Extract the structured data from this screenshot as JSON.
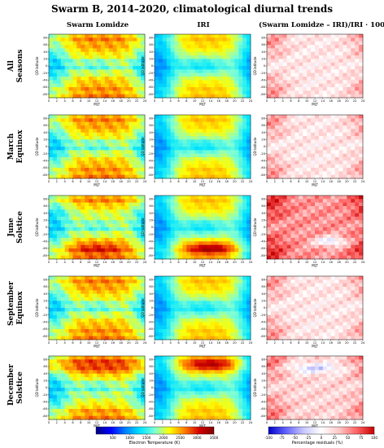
{
  "title": "Swarm B, 2014–2020, climatological diurnal trends",
  "colors": {
    "temp_scale": [
      "#00007f",
      "#0000ff",
      "#007fff",
      "#00e5ff",
      "#7fffd4",
      "#ffff00",
      "#ff7f00",
      "#d40000",
      "#7f0000"
    ],
    "resid_scale": [
      "#0000c8",
      "#6464ff",
      "#c8c8ff",
      "#ffffff",
      "#ffc8c8",
      "#ff6464",
      "#c80000"
    ]
  },
  "chart_data": [
    {
      "type": "heatmap",
      "panels_columns": [
        {
          "id": "lomidze",
          "title": "Swarm Lomidze",
          "colormap": "temp"
        },
        {
          "id": "iri",
          "title": "IRI",
          "colormap": "temp"
        },
        {
          "id": "resid",
          "title": "(Swarm Lomidze – IRI)/IRI · 100",
          "colormap": "resid"
        }
      ],
      "panel_rows": [
        {
          "id": "all",
          "label": [
            "All Seasons"
          ]
        },
        {
          "id": "march",
          "label": [
            "March",
            "Equinox"
          ]
        },
        {
          "id": "june",
          "label": [
            "June",
            "Solstice"
          ]
        },
        {
          "id": "september",
          "label": [
            "September",
            "Equinox"
          ]
        },
        {
          "id": "december",
          "label": [
            "December",
            "Solstice"
          ]
        }
      ],
      "xlabel": "MLT",
      "ylabel": "QD latitude",
      "xlim": [
        0,
        24
      ],
      "ylim": [
        -90,
        90
      ],
      "xticks": [
        0,
        2,
        4,
        6,
        8,
        10,
        12,
        14,
        16,
        18,
        20,
        22,
        24
      ],
      "yticks": [
        -80,
        -60,
        -40,
        -20,
        0,
        20,
        40,
        60,
        80
      ],
      "colorbars": [
        {
          "label": "Electron Temperature (K)",
          "range": [
            0,
            3500
          ],
          "ticks": [
            500,
            1000,
            1500,
            2000,
            2500,
            3000,
            3500
          ]
        },
        {
          "label": "Percentage residuals (%)",
          "range": [
            -100,
            100
          ],
          "ticks": [
            -100,
            -75,
            -50,
            -25,
            0,
            25,
            50,
            75,
            100
          ]
        }
      ]
    }
  ]
}
